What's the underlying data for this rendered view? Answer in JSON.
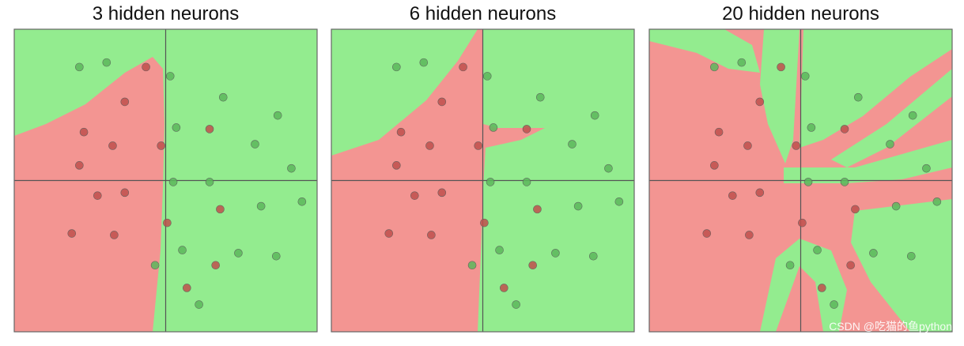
{
  "chart_data": [
    {
      "type": "scatter",
      "title": "3 hidden neurons",
      "xlim": [
        -10,
        10
      ],
      "ylim": [
        -10,
        10
      ],
      "series": [
        {
          "color": "#5cb85c",
          "x": [
            -5.7,
            -3.9,
            0.3,
            3.8,
            7.4,
            0.7,
            5.9,
            8.3,
            0.5,
            2.9,
            6.3,
            9.0,
            1.1,
            4.8,
            7.3,
            -0.7,
            2.2
          ],
          "values": [
            7.5,
            7.8,
            6.9,
            5.5,
            4.3,
            3.5,
            2.4,
            0.8,
            -0.1,
            -0.1,
            -1.7,
            -1.4,
            -4.6,
            -4.8,
            -5.0,
            -5.6,
            -8.2
          ]
        },
        {
          "color": "#c0504d",
          "x": [
            -1.3,
            -2.7,
            -5.4,
            -3.5,
            -0.3,
            2.9,
            -5.7,
            -4.5,
            -2.7,
            3.6,
            0.1,
            -6.2,
            -3.4,
            3.3,
            1.4
          ],
          "values": [
            7.5,
            5.2,
            3.2,
            2.3,
            2.3,
            3.4,
            1.0,
            -1.0,
            -0.8,
            -1.9,
            -2.8,
            -3.5,
            -3.6,
            -5.6,
            -7.1
          ]
        }
      ]
    },
    {
      "type": "scatter",
      "title": "6 hidden neurons",
      "xlim": [
        -10,
        10
      ],
      "ylim": [
        -10,
        10
      ],
      "series": [
        {
          "color": "#5cb85c",
          "x": [
            -5.7,
            -3.9,
            0.3,
            3.8,
            7.4,
            0.7,
            5.9,
            8.3,
            0.5,
            2.9,
            6.3,
            9.0,
            1.1,
            4.8,
            7.3,
            -0.7,
            2.2
          ],
          "values": [
            7.5,
            7.8,
            6.9,
            5.5,
            4.3,
            3.5,
            2.4,
            0.8,
            -0.1,
            -0.1,
            -1.7,
            -1.4,
            -4.6,
            -4.8,
            -5.0,
            -5.6,
            -8.2
          ]
        },
        {
          "color": "#c0504d",
          "x": [
            -1.3,
            -2.7,
            -5.4,
            -3.5,
            -0.3,
            2.9,
            -5.7,
            -4.5,
            -2.7,
            3.6,
            0.1,
            -6.2,
            -3.4,
            3.3,
            1.4
          ],
          "values": [
            7.5,
            5.2,
            3.2,
            2.3,
            2.3,
            3.4,
            1.0,
            -1.0,
            -0.8,
            -1.9,
            -2.8,
            -3.5,
            -3.6,
            -5.6,
            -7.1
          ]
        }
      ]
    },
    {
      "type": "scatter",
      "title": "20 hidden neurons",
      "xlim": [
        -10,
        10
      ],
      "ylim": [
        -10,
        10
      ],
      "series": [
        {
          "color": "#5cb85c",
          "x": [
            -5.7,
            -3.9,
            0.3,
            3.8,
            7.4,
            0.7,
            5.9,
            8.3,
            0.5,
            2.9,
            6.3,
            9.0,
            1.1,
            4.8,
            7.3,
            -0.7,
            2.2
          ],
          "values": [
            7.5,
            7.8,
            6.9,
            5.5,
            4.3,
            3.5,
            2.4,
            0.8,
            -0.1,
            -0.1,
            -1.7,
            -1.4,
            -4.6,
            -4.8,
            -5.0,
            -5.6,
            -8.2
          ]
        },
        {
          "color": "#c0504d",
          "x": [
            -1.3,
            -2.7,
            -5.4,
            -3.5,
            -0.3,
            2.9,
            -5.7,
            -4.5,
            -2.7,
            3.6,
            0.1,
            -6.2,
            -3.4,
            3.3,
            1.4
          ],
          "values": [
            7.5,
            5.2,
            3.2,
            2.3,
            2.3,
            3.4,
            1.0,
            -1.0,
            -0.8,
            -1.9,
            -2.8,
            -3.5,
            -3.6,
            -5.6,
            -7.1
          ]
        }
      ]
    }
  ],
  "watermark": "CSDN @吃猫的鱼python"
}
